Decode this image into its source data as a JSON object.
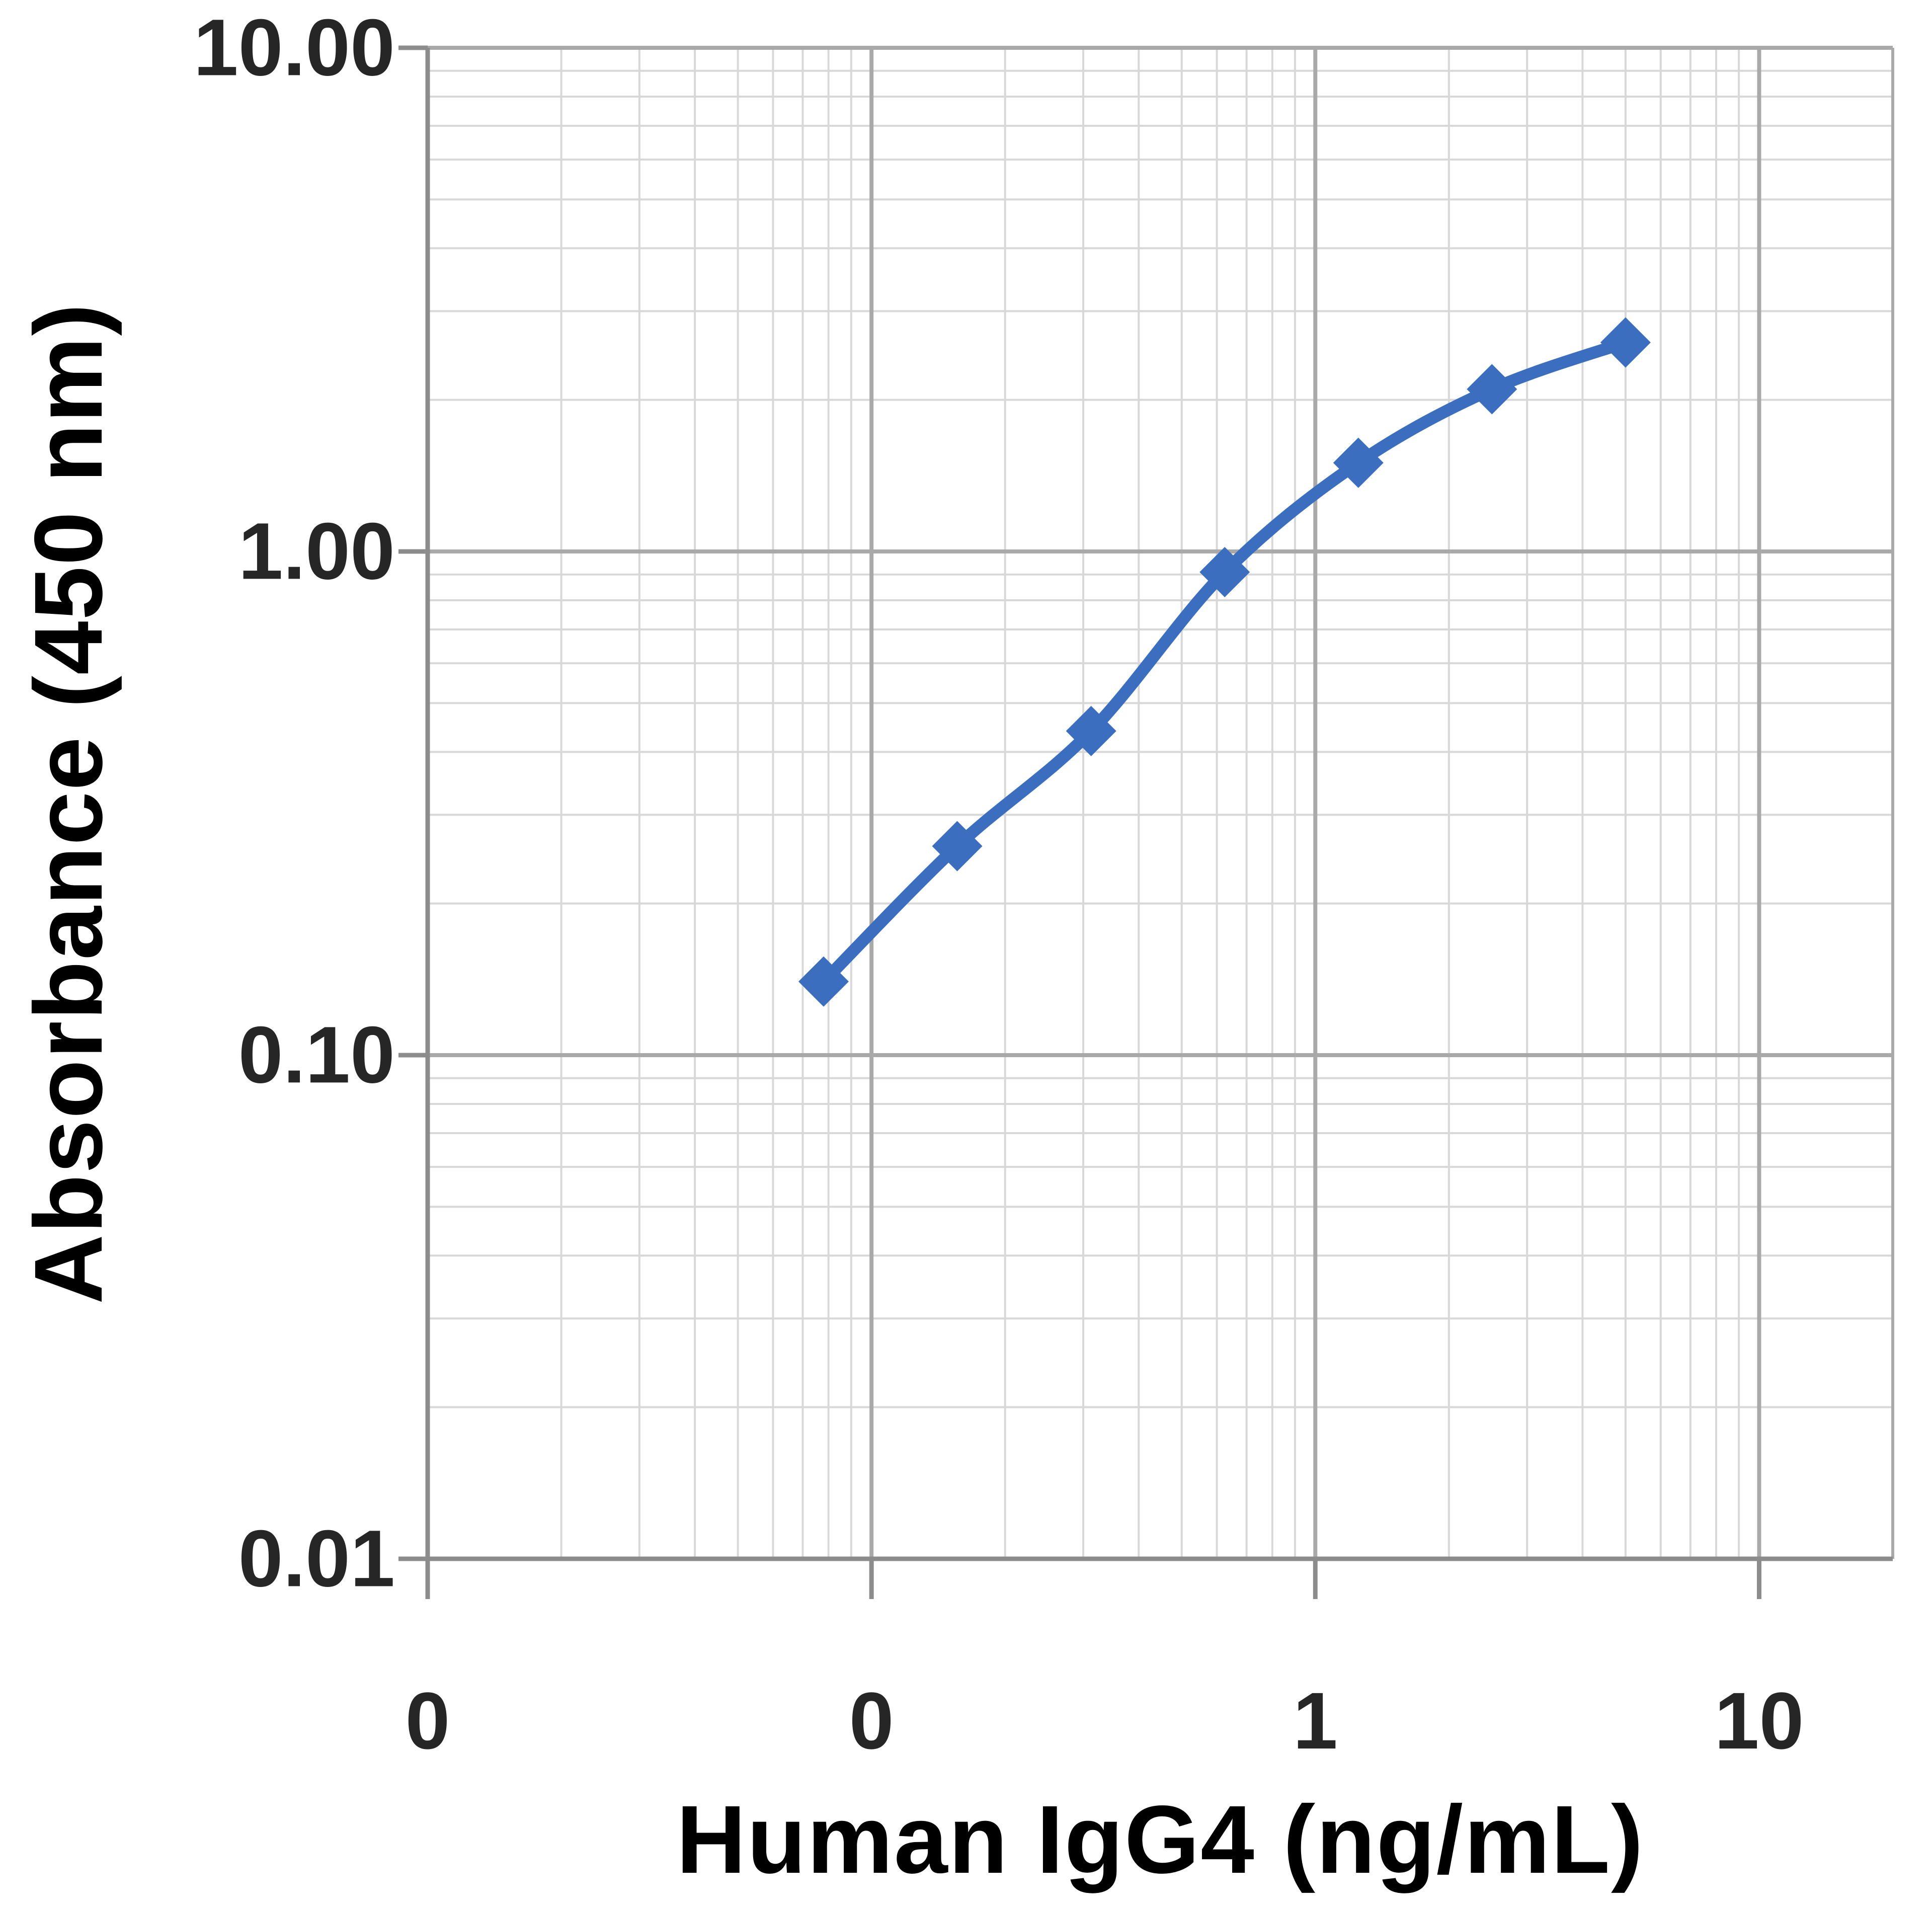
{
  "chart_data": {
    "type": "line",
    "title": "",
    "xlabel": "Human IgG4 (ng/mL)",
    "ylabel": "Absorbance (450 nm)",
    "x_scale": "log",
    "y_scale": "log",
    "xlim": [
      0.01,
      20
    ],
    "ylim": [
      0.01,
      10
    ],
    "grid": "major and minor log gridlines, both axes",
    "legend_position": "none",
    "x_major_ticks": [
      {
        "value": 0.01,
        "label": "0"
      },
      {
        "value": 0.1,
        "label": "0"
      },
      {
        "value": 1,
        "label": "1"
      },
      {
        "value": 10,
        "label": "10"
      }
    ],
    "y_major_ticks": [
      {
        "value": 10,
        "label": "10.00"
      },
      {
        "value": 1,
        "label": "1.00"
      },
      {
        "value": 0.1,
        "label": "0.10"
      },
      {
        "value": 0.01,
        "label": "0.01"
      }
    ],
    "series": [
      {
        "marker": "diamond",
        "smooth": true,
        "color": "#3B6EBE",
        "points": [
          {
            "x": 0.078,
            "y": 0.14
          },
          {
            "x": 0.156,
            "y": 0.26
          },
          {
            "x": 0.3125,
            "y": 0.44
          },
          {
            "x": 0.625,
            "y": 0.91
          },
          {
            "x": 1.25,
            "y": 1.5
          },
          {
            "x": 2.5,
            "y": 2.1
          },
          {
            "x": 5,
            "y": 2.6
          }
        ]
      }
    ],
    "colors": {
      "background": "#FFFFFF",
      "minor_grid": "#D8D8D8",
      "major_grid": "#A9A9A9",
      "axis_line": "#8C8C8C",
      "tick_text": "#262626",
      "title_text": "#000000"
    }
  }
}
